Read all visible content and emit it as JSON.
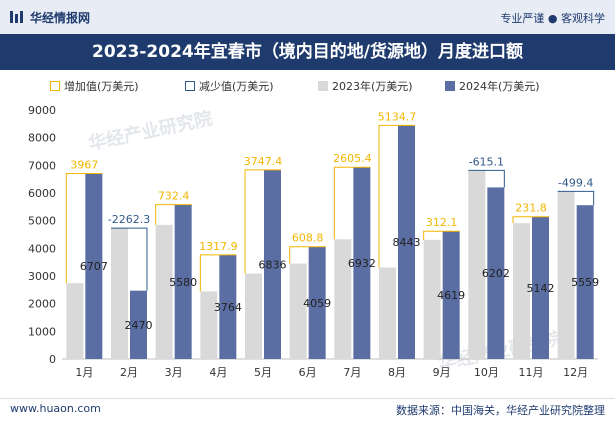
{
  "header": {
    "brand": "华经情报网",
    "tagline": "专业严谨 ● 客观科学"
  },
  "title": "2023-2024年宜春市（境内目的地/货源地）月度进口额",
  "legend": {
    "increase": "增加值(万美元)",
    "decrease": "减少值(万美元)",
    "y2023": "2023年(万美元)",
    "y2024": "2024年(万美元)"
  },
  "watermark": "华经产业研究院",
  "footer": {
    "url": "www.huaon.com",
    "source": "数据来源：中国海关，华经产业研究院整理"
  },
  "colors": {
    "bar2023": "#d9d9d9",
    "bar2024": "#5b6ea3",
    "increase": "#f2b600",
    "decrease": "#2f5a8c",
    "header_bg": "#e8edf5",
    "title_bg": "#1f3b6e"
  },
  "chart_data": {
    "type": "bar",
    "categories": [
      "1月",
      "2月",
      "3月",
      "4月",
      "5月",
      "6月",
      "7月",
      "8月",
      "9月",
      "10月",
      "11月",
      "12月"
    ],
    "series": [
      {
        "name": "2023年(万美元)",
        "values": [
          2740,
          4732,
          4848,
          2446,
          3088,
          3450,
          4327,
          3308,
          4307,
          6817,
          4910,
          6058
        ]
      },
      {
        "name": "2024年(万美元)",
        "values": [
          6707,
          2470,
          5580,
          3764,
          6836,
          4059,
          6932,
          8443,
          4619,
          6202,
          5142,
          5559
        ]
      }
    ],
    "change_labels": [
      "3967",
      "-2262.3",
      "732.4",
      "1317.9",
      "3747.4",
      "608.8",
      "2605.4",
      "5134.7",
      "312.1",
      "-615.1",
      "231.8",
      "-499.4"
    ],
    "value_labels_2024": [
      "6707",
      "2470",
      "5580",
      "3764",
      "6836",
      "4059",
      "6932",
      "8443",
      "4619",
      "6202",
      "5142",
      "5559"
    ],
    "ylim": [
      0,
      9000
    ],
    "yticks": [
      "0",
      "1000",
      "2000",
      "3000",
      "4000",
      "5000",
      "6000",
      "7000",
      "8000",
      "9000"
    ],
    "legend_position": "top",
    "grid": false
  }
}
